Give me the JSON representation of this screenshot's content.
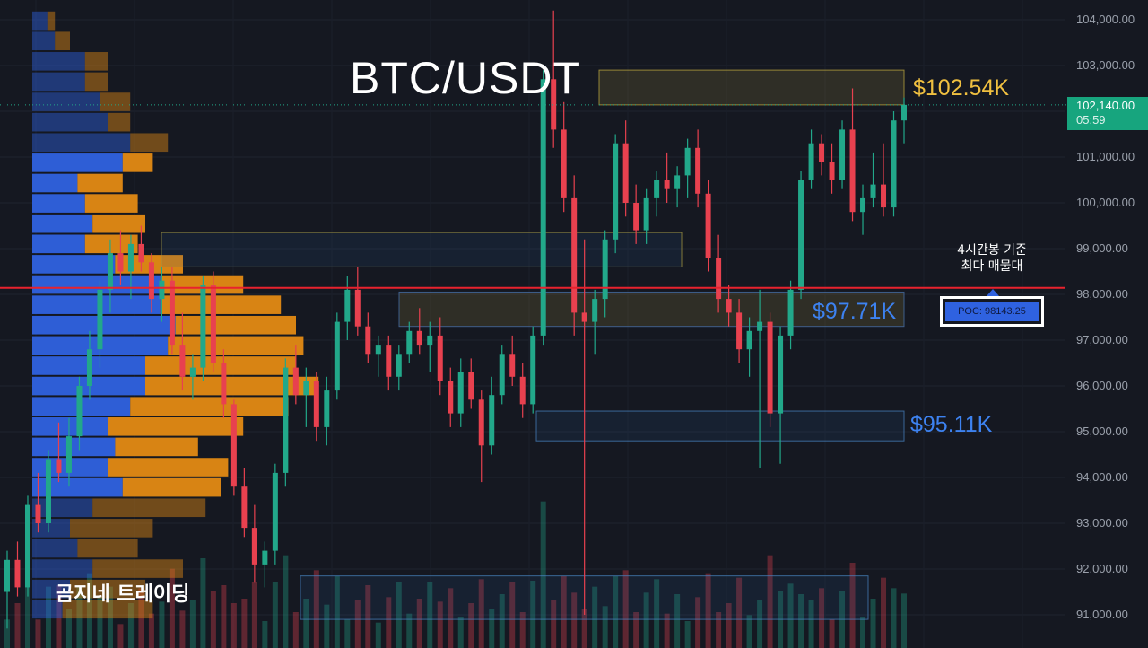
{
  "title": "BTC/USDT",
  "brand": "곰지네 트레이딩",
  "levels": {
    "top": "$102.54K",
    "mid": "$97.71K",
    "low": "$95.11K"
  },
  "note": {
    "line1": "4시간봉 기준",
    "line2": "최다 매물대"
  },
  "poc_label": "POC: 98143.25",
  "current_price": "102,140.00",
  "countdown": "05:59",
  "colors": {
    "up": "#22a88a",
    "down": "#e8414f",
    "poc_line": "#e8222e",
    "vp_buy": "#2f62e0",
    "vp_sell": "#e38a14",
    "level_top": "#f0c040",
    "level_blue": "#3d82f0"
  },
  "chart_data": {
    "type": "candlestick",
    "y_axis": {
      "ticks": [
        "104,000.00",
        "103,000.00",
        "102,000.00",
        "101,000.00",
        "100,000.00",
        "99,000.00",
        "98,000.00",
        "97,000.00",
        "96,000.00",
        "95,000.00",
        "94,000.00",
        "93,000.00",
        "92,000.00",
        "91,000.00"
      ],
      "range": [
        90250,
        104500
      ]
    },
    "horizontal_lines": [
      {
        "name": "POC",
        "value": 98143.25
      },
      {
        "name": "current",
        "value": 102140
      }
    ],
    "zones": [
      {
        "label": "$102.54K",
        "from": 102140,
        "to": 102900
      },
      {
        "label": "",
        "from": 98600,
        "to": 99350
      },
      {
        "label": "$97.71K",
        "from": 97300,
        "to": 98050
      },
      {
        "label": "$95.11K",
        "from": 94800,
        "to": 95450
      },
      {
        "label": "",
        "from": 90900,
        "to": 91850
      }
    ],
    "volume_profile": {
      "price_from": 90900,
      "price_to": 104200,
      "rows": 30,
      "buy": [
        8,
        10,
        16,
        12,
        10,
        16,
        24,
        20,
        22,
        20,
        26,
        30,
        30,
        36,
        38,
        34,
        34,
        22,
        14,
        16,
        14,
        12,
        24,
        26,
        20,
        18,
        14,
        14,
        6,
        4
      ],
      "sell": [
        24,
        20,
        24,
        16,
        22,
        30,
        26,
        32,
        22,
        36,
        42,
        46,
        40,
        36,
        32,
        32,
        22,
        18,
        14,
        14,
        14,
        12,
        8,
        10,
        6,
        8,
        6,
        6,
        4,
        2
      ]
    },
    "candles_ohlc": [
      [
        91500,
        92400,
        90700,
        92200
      ],
      [
        92200,
        92600,
        91400,
        91600
      ],
      [
        91600,
        93600,
        91400,
        93400
      ],
      [
        93400,
        94100,
        92800,
        93000
      ],
      [
        93000,
        94600,
        92800,
        94400
      ],
      [
        94400,
        95200,
        93900,
        94100
      ],
      [
        94100,
        95300,
        93800,
        94900
      ],
      [
        94900,
        96200,
        94600,
        96000
      ],
      [
        96000,
        97200,
        95700,
        96800
      ],
      [
        96800,
        98300,
        96400,
        98100
      ],
      [
        98100,
        99200,
        97600,
        98900
      ],
      [
        98900,
        99400,
        98200,
        98500
      ],
      [
        98500,
        99300,
        97900,
        99100
      ],
      [
        99100,
        99500,
        98500,
        98700
      ],
      [
        98700,
        98900,
        97600,
        97900
      ],
      [
        97900,
        98600,
        97400,
        98300
      ],
      [
        98300,
        98600,
        96700,
        96900
      ],
      [
        96900,
        97600,
        95900,
        96200
      ],
      [
        96200,
        96700,
        95700,
        96400
      ],
      [
        96400,
        98400,
        96100,
        98200
      ],
      [
        98200,
        98500,
        96300,
        96500
      ],
      [
        96500,
        96800,
        95300,
        95600
      ],
      [
        95600,
        95700,
        93600,
        93800
      ],
      [
        93800,
        94200,
        92700,
        92900
      ],
      [
        92900,
        93400,
        91700,
        92100
      ],
      [
        92100,
        92600,
        91600,
        92400
      ],
      [
        92400,
        94300,
        92100,
        94100
      ],
      [
        94100,
        96600,
        93800,
        96400
      ],
      [
        96400,
        96900,
        95600,
        95800
      ],
      [
        95800,
        96400,
        95100,
        96100
      ],
      [
        96100,
        96300,
        94800,
        95100
      ],
      [
        95100,
        96200,
        94700,
        95900
      ],
      [
        95900,
        97600,
        95700,
        97400
      ],
      [
        97400,
        98400,
        97000,
        98100
      ],
      [
        98100,
        98600,
        97100,
        97300
      ],
      [
        97300,
        97600,
        96500,
        96700
      ],
      [
        96700,
        97100,
        96200,
        96900
      ],
      [
        96900,
        97100,
        95900,
        96200
      ],
      [
        96200,
        96900,
        95900,
        96700
      ],
      [
        96700,
        97400,
        96500,
        97200
      ],
      [
        97200,
        97700,
        96700,
        96900
      ],
      [
        96900,
        97400,
        96300,
        97100
      ],
      [
        97100,
        97500,
        95800,
        96100
      ],
      [
        96100,
        96400,
        95100,
        95400
      ],
      [
        95400,
        96600,
        95100,
        96300
      ],
      [
        96300,
        96600,
        95500,
        95700
      ],
      [
        95700,
        95900,
        93900,
        94700
      ],
      [
        94700,
        96200,
        94500,
        95800
      ],
      [
        95800,
        96900,
        95600,
        96700
      ],
      [
        96700,
        97100,
        96000,
        96200
      ],
      [
        96200,
        96500,
        95300,
        95600
      ],
      [
        95600,
        97300,
        95400,
        97100
      ],
      [
        97100,
        102900,
        96900,
        102700
      ],
      [
        102700,
        104200,
        101200,
        101600
      ],
      [
        101600,
        102200,
        99800,
        100100
      ],
      [
        100100,
        100600,
        97100,
        97600
      ],
      [
        97600,
        99200,
        91000,
        97400
      ],
      [
        97400,
        98100,
        96700,
        97900
      ],
      [
        97900,
        99400,
        97500,
        99200
      ],
      [
        99200,
        101500,
        98900,
        101300
      ],
      [
        101300,
        101800,
        99700,
        100000
      ],
      [
        100000,
        100400,
        99100,
        99400
      ],
      [
        99400,
        100300,
        99100,
        100100
      ],
      [
        100100,
        100700,
        99700,
        100500
      ],
      [
        100500,
        101100,
        100000,
        100300
      ],
      [
        100300,
        100800,
        99900,
        100600
      ],
      [
        100600,
        101400,
        100100,
        101200
      ],
      [
        101200,
        101600,
        99900,
        100200
      ],
      [
        100200,
        100500,
        98500,
        98800
      ],
      [
        98800,
        99300,
        97600,
        97900
      ],
      [
        97900,
        98200,
        97300,
        97600
      ],
      [
        97600,
        97900,
        96500,
        96800
      ],
      [
        96800,
        97500,
        96200,
        97200
      ],
      [
        97200,
        98100,
        94200,
        97400
      ],
      [
        97400,
        97600,
        95100,
        95400
      ],
      [
        95400,
        97300,
        94300,
        97100
      ],
      [
        97100,
        98300,
        96800,
        98100
      ],
      [
        98100,
        100700,
        97900,
        100500
      ],
      [
        100500,
        101600,
        100300,
        101300
      ],
      [
        101300,
        101500,
        100600,
        100900
      ],
      [
        100900,
        101300,
        100200,
        100500
      ],
      [
        100500,
        101800,
        100300,
        101600
      ],
      [
        101600,
        102500,
        99600,
        99800
      ],
      [
        99800,
        100400,
        99300,
        100100
      ],
      [
        100100,
        101100,
        99900,
        100400
      ],
      [
        100400,
        101300,
        99700,
        99900
      ],
      [
        99900,
        102000,
        99700,
        101800
      ],
      [
        101800,
        102300,
        101300,
        102140
      ]
    ]
  }
}
